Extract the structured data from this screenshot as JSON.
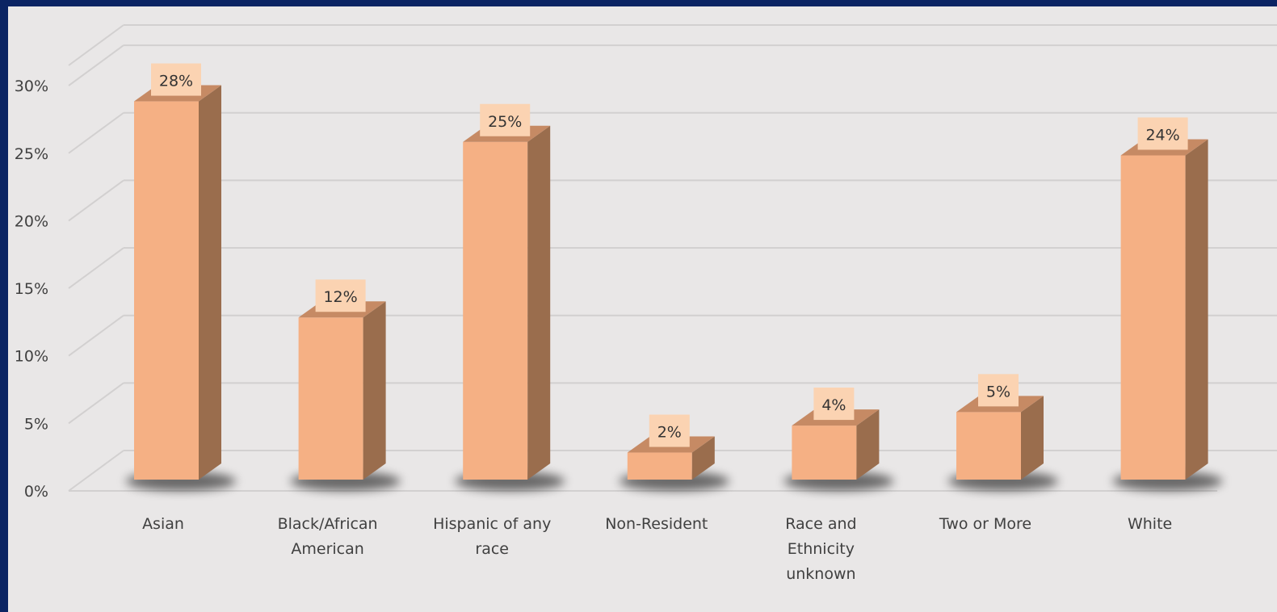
{
  "chart_data": {
    "type": "bar",
    "categories": [
      [
        "Asian"
      ],
      [
        "Black/African",
        "American"
      ],
      [
        "Hispanic of any",
        "race"
      ],
      [
        "Non-Resident"
      ],
      [
        "Race and",
        "Ethnicity",
        "unknown"
      ],
      [
        "Two or More"
      ],
      [
        "White"
      ]
    ],
    "values": [
      28,
      12,
      25,
      2,
      4,
      5,
      24
    ],
    "data_labels": [
      "28%",
      "12%",
      "25%",
      "2%",
      "4%",
      "5%",
      "24%"
    ],
    "yticks": [
      "0%",
      "5%",
      "10%",
      "15%",
      "20%",
      "25%",
      "30%"
    ],
    "ylim": [
      0,
      30
    ],
    "grid": true,
    "style": "3d-column",
    "colors": {
      "bar_front": "#f5b084",
      "bar_side": "#9a6d4d",
      "bar_top": "#c68a64",
      "label_box": "#fbd3b2",
      "background": "#e9e7e7",
      "frame": "#0b2463"
    }
  }
}
